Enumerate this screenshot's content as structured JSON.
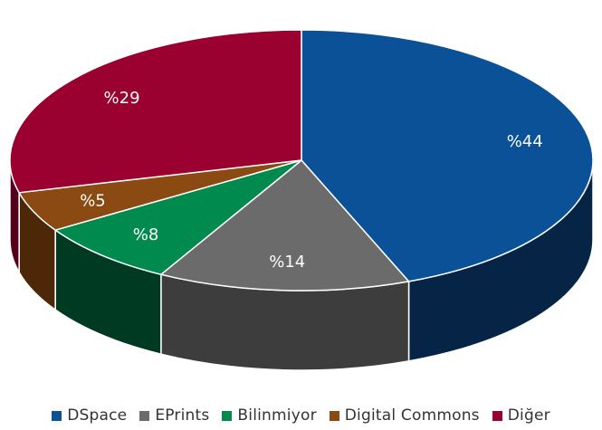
{
  "chart_data": {
    "type": "pie",
    "style": "3d",
    "title": "",
    "legend_position": "bottom",
    "slices": [
      {
        "name": "DSpace",
        "value": 44,
        "label": "%44",
        "color": "#0a5198",
        "side_color": "#062446"
      },
      {
        "name": "EPrints",
        "value": 14,
        "label": "%14",
        "color": "#6b6b6b",
        "side_color": "#3d3d3d"
      },
      {
        "name": "Bilinmiyor",
        "value": 8,
        "label": "%8",
        "color": "#008a4e",
        "side_color": "#003a22"
      },
      {
        "name": "Digital Commons",
        "value": 5,
        "label": "%5",
        "color": "#8a4a12",
        "side_color": "#4c2808"
      },
      {
        "name": "Diğer",
        "value": 29,
        "label": "%29",
        "color": "#9a0030",
        "side_color": "#55001a"
      }
    ]
  }
}
